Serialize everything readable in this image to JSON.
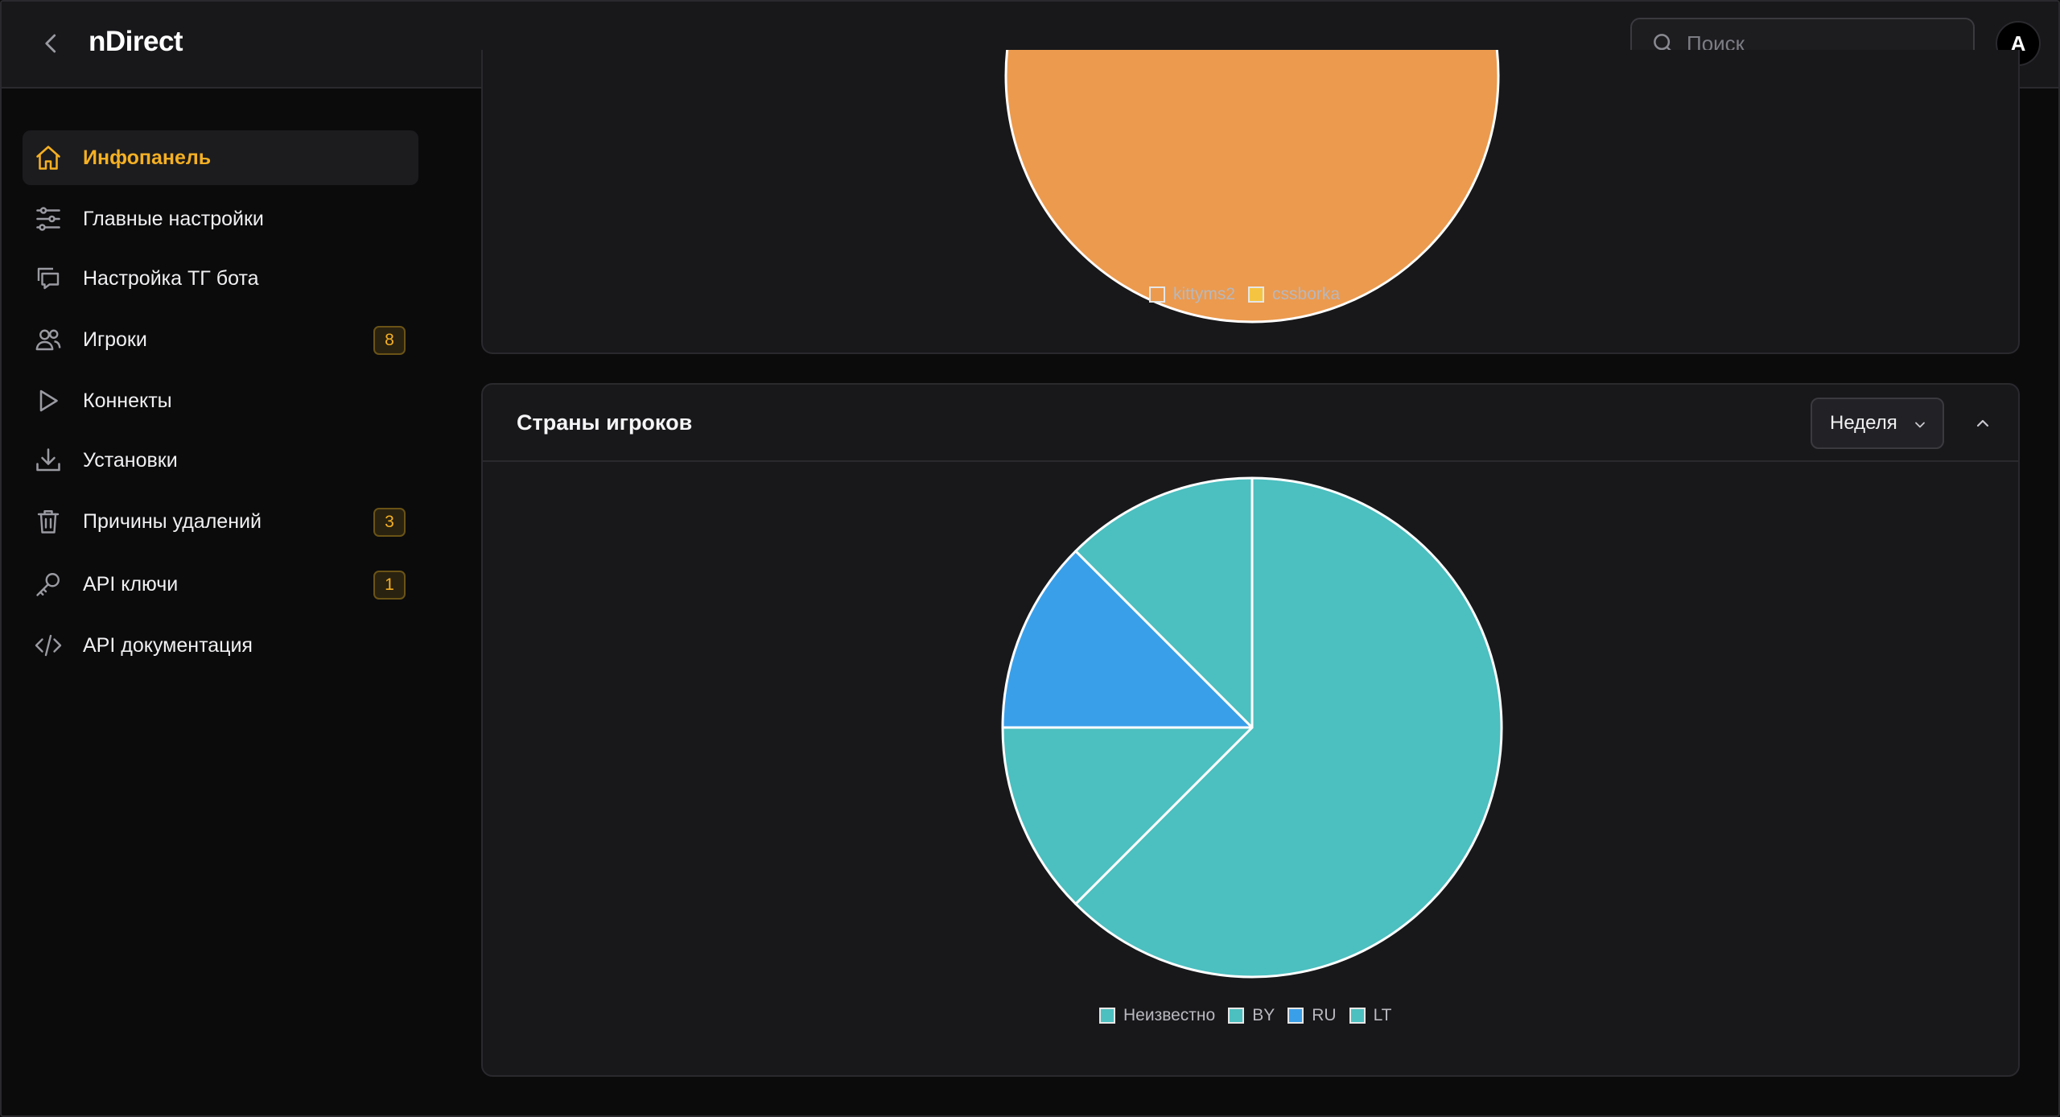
{
  "header": {
    "app_title": "nDirect",
    "search_placeholder": "Поиск",
    "avatar_letter": "A"
  },
  "sidebar": {
    "items": [
      {
        "label": "Инфопанель",
        "icon": "home-icon",
        "active": true,
        "badge": null
      },
      {
        "label": "Главные настройки",
        "icon": "sliders-icon",
        "active": false,
        "badge": null
      },
      {
        "label": "Настройка ТГ бота",
        "icon": "chat-icon",
        "active": false,
        "badge": null
      },
      {
        "label": "Игроки",
        "icon": "users-icon",
        "active": false,
        "badge": "8"
      },
      {
        "label": "Коннекты",
        "icon": "play-icon",
        "active": false,
        "badge": null
      },
      {
        "label": "Установки",
        "icon": "download-icon",
        "active": false,
        "badge": null
      },
      {
        "label": "Причины удалений",
        "icon": "trash-icon",
        "active": false,
        "badge": "3"
      },
      {
        "label": "API ключи",
        "icon": "key-icon",
        "active": false,
        "badge": "1"
      },
      {
        "label": "API документация",
        "icon": "code-icon",
        "active": false,
        "badge": null
      }
    ]
  },
  "colors": {
    "accent": "#f5b023",
    "orange": "#ec9a4e",
    "yellow": "#f5c542",
    "teal": "#4cbfc0",
    "blue": "#3a9fe9"
  },
  "chart_data": [
    {
      "type": "pie",
      "title": "",
      "categories": [
        "kittyms2",
        "cssborka"
      ],
      "values": [
        1,
        0
      ],
      "colors": [
        "#ec9a4e",
        "#f5c542"
      ],
      "legend_position": "bottom"
    },
    {
      "type": "pie",
      "title": "Страны игроков",
      "categories": [
        "Неизвестно",
        "BY",
        "RU",
        "LT"
      ],
      "values": [
        5,
        1,
        1,
        1
      ],
      "colors": [
        "#4cbfc0",
        "#4cbfc0",
        "#3a9fe9",
        "#4cbfc0"
      ],
      "legend_position": "bottom",
      "period_label": "Неделя"
    }
  ]
}
